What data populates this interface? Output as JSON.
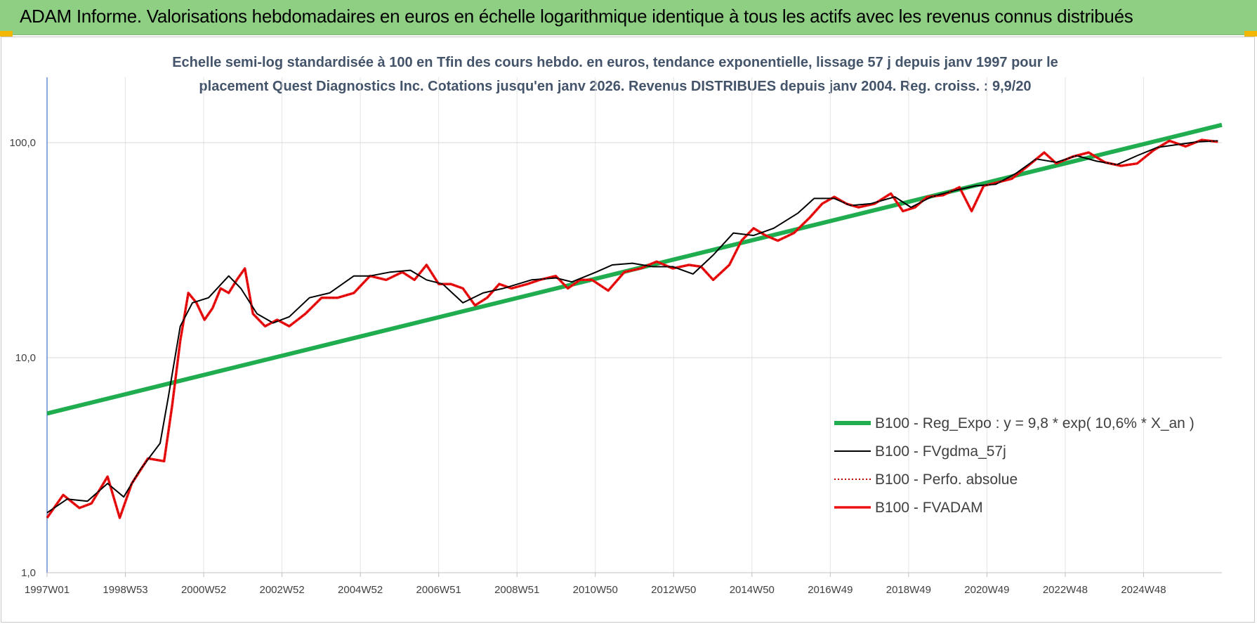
{
  "banner": {
    "title": "ADAM Informe. Valorisations hebdomadaires en euros en échelle logarithmique identique à tous les actifs avec les revenus connus distribués"
  },
  "colors": {
    "banner_bg": "#8fcf83",
    "regression": "#1fad4f",
    "moving_average": "#000000",
    "absolute_perf": "#c00000",
    "fvadam": "#ee1111",
    "corner_accent": "#f2b705"
  },
  "chart_data": {
    "type": "line",
    "title_lines": [
      "Echelle semi-log standardisée à 100 en Tfin des cours hebdo. en euros, tendance exponentielle, lissage 57 j depuis janv 1997 pour le",
      "placement Quest Diagnostics Inc. Cotations jusqu'en janv 2026. Revenus DISTRIBUES depuis janv 2004. Reg. croiss. : 9,9/20"
    ],
    "xlabel": "",
    "ylabel": "",
    "y_scale": "log",
    "ylim": [
      1,
      100
    ],
    "y_ticks": [
      "1,0",
      "10,0",
      "100,0"
    ],
    "x_ticks": [
      "1997W01",
      "1998W53",
      "2000W52",
      "2002W52",
      "2004W52",
      "2006W51",
      "2008W51",
      "2010W50",
      "2012W50",
      "2014W50",
      "2016W49",
      "2018W49",
      "2020W49",
      "2022W48",
      "2024W48"
    ],
    "x_range": [
      1997.0,
      2026.1
    ],
    "grid": true,
    "legend_position": "bottom-right",
    "series": [
      {
        "name": "B100 - Reg_Expo : y = 9,8 * exp( 10,6% *  X_an )",
        "role": "regression",
        "style": "thick",
        "x": [
          1997.0,
          2026.1
        ],
        "values": [
          5.5,
          121.0
        ]
      },
      {
        "name": "B100 - FVgdma_57j",
        "role": "moving_average",
        "style": "thin",
        "x": [
          1997.0,
          1997.5,
          1998.0,
          1998.5,
          1998.9,
          1999.3,
          1999.8,
          2000.0,
          2000.3,
          2000.6,
          2001.0,
          2001.5,
          2001.8,
          2002.2,
          2002.6,
          2003.0,
          2003.5,
          2004.0,
          2004.6,
          2005.0,
          2005.5,
          2006.0,
          2006.4,
          2006.8,
          2007.3,
          2007.8,
          2008.3,
          2009.0,
          2009.6,
          2010.0,
          2010.6,
          2011.0,
          2011.5,
          2012.0,
          2012.5,
          2013.0,
          2013.5,
          2014.0,
          2014.5,
          2015.0,
          2015.6,
          2016.0,
          2016.5,
          2016.9,
          2017.4,
          2018.0,
          2018.4,
          2018.9,
          2019.5,
          2020.0,
          2020.5,
          2021.0,
          2021.5,
          2022.0,
          2022.5,
          2023.0,
          2023.5,
          2024.0,
          2024.5,
          2025.0,
          2025.5,
          2026.0
        ],
        "values": [
          1.9,
          2.2,
          2.15,
          2.6,
          2.25,
          3.0,
          4.0,
          6.5,
          14.0,
          18.0,
          19.0,
          24.0,
          21.0,
          16.0,
          14.5,
          15.5,
          19.0,
          20.0,
          24.0,
          24.0,
          25.0,
          25.5,
          23.0,
          22.0,
          18.0,
          20.0,
          21.0,
          23.0,
          23.5,
          22.5,
          25.0,
          27.0,
          27.5,
          26.5,
          26.5,
          24.5,
          30.0,
          38.0,
          37.0,
          40.0,
          47.0,
          55.0,
          55.0,
          51.0,
          52.0,
          56.0,
          50.0,
          56.0,
          60.0,
          63.0,
          64.0,
          72.0,
          84.0,
          81.0,
          87.0,
          82.0,
          79.0,
          87.0,
          95.0,
          98.0,
          101.0,
          102.0
        ]
      },
      {
        "name": "B100 - Perfo. absolue",
        "role": "absolute",
        "style": "dotted",
        "x": [
          1997.0,
          1997.4,
          1997.8,
          1998.1,
          1998.5,
          1998.8,
          1999.1,
          1999.5,
          1999.9,
          2000.1,
          2000.3,
          2000.5,
          2000.7,
          2000.9,
          2001.1,
          2001.3,
          2001.5,
          2001.7,
          2001.9,
          2002.1,
          2002.4,
          2002.7,
          2003.0,
          2003.4,
          2003.8,
          2004.2,
          2004.6,
          2005.0,
          2005.4,
          2005.8,
          2006.1,
          2006.4,
          2006.7,
          2007.0,
          2007.3,
          2007.6,
          2007.9,
          2008.2,
          2008.5,
          2008.9,
          2009.2,
          2009.6,
          2009.9,
          2010.2,
          2010.5,
          2010.9,
          2011.3,
          2011.7,
          2012.1,
          2012.5,
          2012.9,
          2013.2,
          2013.5,
          2013.9,
          2014.2,
          2014.5,
          2014.8,
          2015.1,
          2015.5,
          2015.9,
          2016.2,
          2016.5,
          2016.8,
          2017.1,
          2017.5,
          2017.9,
          2018.2,
          2018.5,
          2018.8,
          2019.2,
          2019.6,
          2019.9,
          2020.2,
          2020.5,
          2020.9,
          2021.3,
          2021.7,
          2022.0,
          2022.4,
          2022.8,
          2023.2,
          2023.6,
          2024.0,
          2024.4,
          2024.8,
          2025.2,
          2025.6,
          2026.0
        ],
        "values": [
          1.8,
          2.3,
          2.0,
          2.1,
          2.8,
          1.8,
          2.6,
          3.4,
          3.3,
          6.0,
          12.0,
          20.0,
          18.0,
          15.0,
          17.0,
          21.0,
          20.0,
          23.0,
          26.0,
          16.0,
          14.0,
          15.0,
          14.0,
          16.0,
          19.0,
          19.0,
          20.0,
          24.0,
          23.0,
          25.0,
          23.0,
          27.0,
          22.0,
          22.0,
          21.0,
          17.5,
          19.0,
          22.0,
          21.0,
          22.0,
          23.0,
          24.0,
          21.0,
          23.0,
          23.0,
          20.5,
          25.0,
          26.0,
          28.0,
          26.0,
          27.0,
          26.5,
          23.0,
          27.0,
          35.0,
          40.0,
          37.0,
          35.0,
          38.0,
          45.0,
          52.0,
          56.0,
          52.0,
          50.0,
          52.0,
          58.0,
          48.0,
          50.0,
          56.0,
          57.0,
          62.0,
          48.0,
          63.0,
          65.0,
          68.0,
          78.0,
          90.0,
          80.0,
          86.0,
          90.0,
          81.0,
          78.0,
          80.0,
          92.0,
          102.0,
          96.0,
          103.0,
          101.0
        ]
      },
      {
        "name": "B100 - FVADAM",
        "role": "fvadam",
        "style": "thick",
        "x": [
          1997.0,
          1997.4,
          1997.8,
          1998.1,
          1998.5,
          1998.8,
          1999.1,
          1999.5,
          1999.9,
          2000.1,
          2000.3,
          2000.5,
          2000.7,
          2000.9,
          2001.1,
          2001.3,
          2001.5,
          2001.7,
          2001.9,
          2002.1,
          2002.4,
          2002.7,
          2003.0,
          2003.4,
          2003.8,
          2004.2,
          2004.6,
          2005.0,
          2005.4,
          2005.8,
          2006.1,
          2006.4,
          2006.7,
          2007.0,
          2007.3,
          2007.6,
          2007.9,
          2008.2,
          2008.5,
          2008.9,
          2009.2,
          2009.6,
          2009.9,
          2010.2,
          2010.5,
          2010.9,
          2011.3,
          2011.7,
          2012.1,
          2012.5,
          2012.9,
          2013.2,
          2013.5,
          2013.9,
          2014.2,
          2014.5,
          2014.8,
          2015.1,
          2015.5,
          2015.9,
          2016.2,
          2016.5,
          2016.8,
          2017.1,
          2017.5,
          2017.9,
          2018.2,
          2018.5,
          2018.8,
          2019.2,
          2019.6,
          2019.9,
          2020.2,
          2020.5,
          2020.9,
          2021.3,
          2021.7,
          2022.0,
          2022.4,
          2022.8,
          2023.2,
          2023.6,
          2024.0,
          2024.4,
          2024.8,
          2025.2,
          2025.6,
          2026.0
        ],
        "values": [
          1.8,
          2.3,
          2.0,
          2.1,
          2.8,
          1.8,
          2.6,
          3.4,
          3.3,
          6.0,
          12.0,
          20.0,
          18.0,
          15.0,
          17.0,
          21.0,
          20.0,
          23.0,
          26.0,
          16.0,
          14.0,
          15.0,
          14.0,
          16.0,
          19.0,
          19.0,
          20.0,
          24.0,
          23.0,
          25.0,
          23.0,
          27.0,
          22.0,
          22.0,
          21.0,
          17.5,
          19.0,
          22.0,
          21.0,
          22.0,
          23.0,
          24.0,
          21.0,
          23.0,
          23.0,
          20.5,
          25.0,
          26.0,
          28.0,
          26.0,
          27.0,
          26.5,
          23.0,
          27.0,
          35.0,
          40.0,
          37.0,
          35.0,
          38.0,
          45.0,
          52.0,
          56.0,
          52.0,
          50.0,
          52.0,
          58.0,
          48.0,
          50.0,
          56.0,
          57.0,
          62.0,
          48.0,
          63.0,
          65.0,
          68.0,
          78.0,
          90.0,
          80.0,
          86.0,
          90.0,
          81.0,
          78.0,
          80.0,
          92.0,
          102.0,
          96.0,
          103.0,
          101.0
        ]
      }
    ]
  }
}
